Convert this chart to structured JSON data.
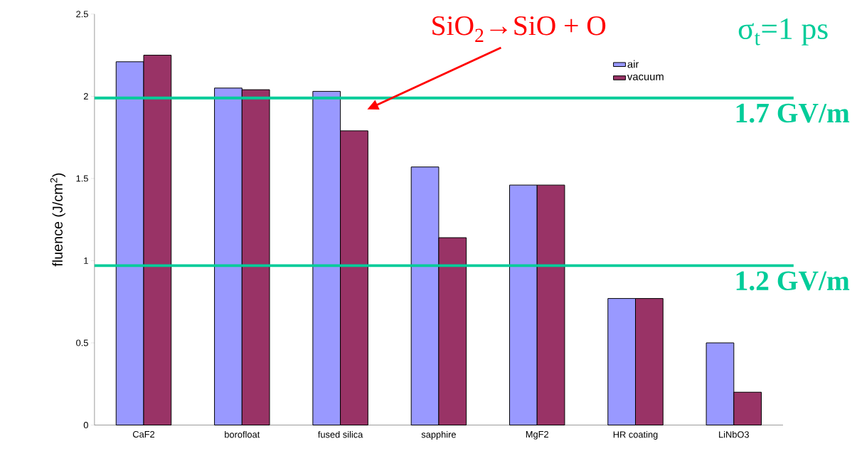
{
  "chart_data": {
    "type": "bar",
    "ylabel": "fluence  (J/cm$^{2}$)",
    "categories": [
      "CaF2",
      "borofloat",
      "fused silica",
      "sapphire",
      "MgF2",
      "HR coating",
      "LiNbO3"
    ],
    "series": [
      {
        "name": "air",
        "color": "#9999ff",
        "values": [
          2.21,
          2.05,
          2.03,
          1.57,
          1.46,
          0.77,
          0.5
        ]
      },
      {
        "name": "vacuum",
        "color": "#993366",
        "values": [
          2.25,
          2.04,
          1.79,
          1.14,
          1.46,
          0.77,
          0.2
        ]
      }
    ],
    "ylim": [
      0,
      2.5
    ],
    "yticks": [
      0,
      0.5,
      1,
      1.5,
      2,
      2.5
    ],
    "legend": "top right",
    "ref_lines": [
      {
        "axis": "y",
        "value": 1.99,
        "label": "1.7 GV/m",
        "color": "#00cc99"
      },
      {
        "axis": "y",
        "value": 0.97,
        "label": "1.2 GV/m",
        "color": "#00cc99"
      }
    ],
    "annotations": [
      "SiO$_{2}$→SiO + O",
      "σ$_{t}$=1 ps"
    ]
  }
}
